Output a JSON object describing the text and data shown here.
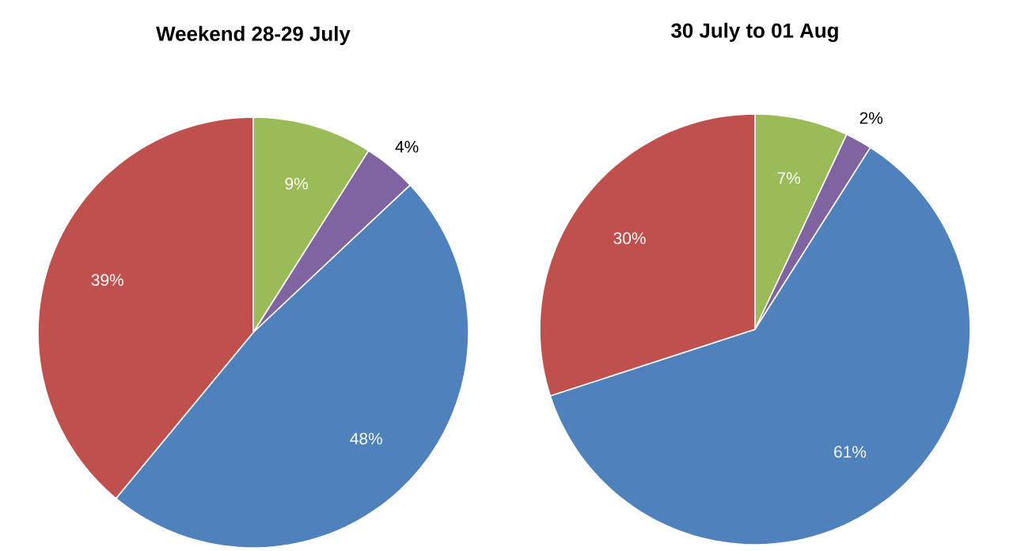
{
  "chart_data": [
    {
      "type": "pie",
      "title": "Weekend 28-29 July",
      "categories": [
        null,
        null,
        null,
        null
      ],
      "values": [
        9,
        4,
        48,
        39
      ],
      "colors": [
        "#9bbb59",
        "#8064a2",
        "#4f81bd",
        "#c0504d"
      ],
      "value_labels": [
        "9%",
        "4%",
        "48%",
        "39%"
      ]
    },
    {
      "type": "pie",
      "title": "30 July to 01 Aug",
      "categories": [
        null,
        null,
        null,
        null
      ],
      "values": [
        7,
        2,
        61,
        30
      ],
      "colors": [
        "#9bbb59",
        "#8064a2",
        "#4f81bd",
        "#c0504d"
      ],
      "value_labels": [
        "7%",
        "2%",
        "61%",
        "30%"
      ]
    }
  ]
}
